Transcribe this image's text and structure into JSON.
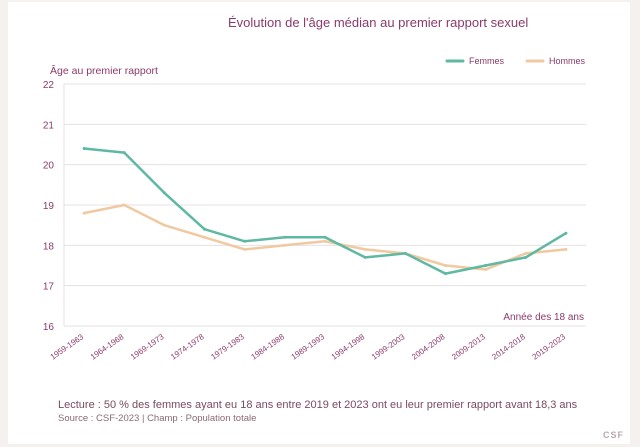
{
  "chart_data": {
    "type": "line",
    "title": "Évolution de l'âge médian au premier rapport sexuel",
    "ylabel": "Âge au premier rapport",
    "xlabel": "Année des 18 ans",
    "ylim": [
      16,
      22
    ],
    "yticks": [
      "16",
      "17",
      "18",
      "19",
      "20",
      "21",
      "22"
    ],
    "grid": "horizontal",
    "legend_position": "top-right",
    "categories": [
      "1959-1963",
      "1964-1968",
      "1969-1973",
      "1974-1978",
      "1979-1983",
      "1984-1988",
      "1989-1993",
      "1994-1998",
      "1999-2003",
      "2004-2008",
      "2009-2013",
      "2014-2018",
      "2019-2023"
    ],
    "series": [
      {
        "name": "Femmes",
        "color": "#5fb8a2",
        "values": [
          20.4,
          20.3,
          19.3,
          18.4,
          18.1,
          18.2,
          18.2,
          17.7,
          17.8,
          17.3,
          17.5,
          17.7,
          18.3
        ]
      },
      {
        "name": "Hommes",
        "color": "#f0c9a0",
        "values": [
          18.8,
          19.0,
          18.5,
          18.2,
          17.9,
          18.0,
          18.1,
          17.9,
          17.8,
          17.5,
          17.4,
          17.8,
          17.9
        ]
      }
    ]
  },
  "footer": {
    "note": "Lecture : 50 % des femmes ayant eu 18 ans entre 2019 et 2023 ont eu leur premier rapport avant 18,3 ans",
    "source": "Source : CSF-2023  |  Champ : Population totale",
    "brand": "CSF"
  },
  "colors": {
    "text_accent": "#8b3a6b",
    "grid": "#e6e0e3"
  }
}
